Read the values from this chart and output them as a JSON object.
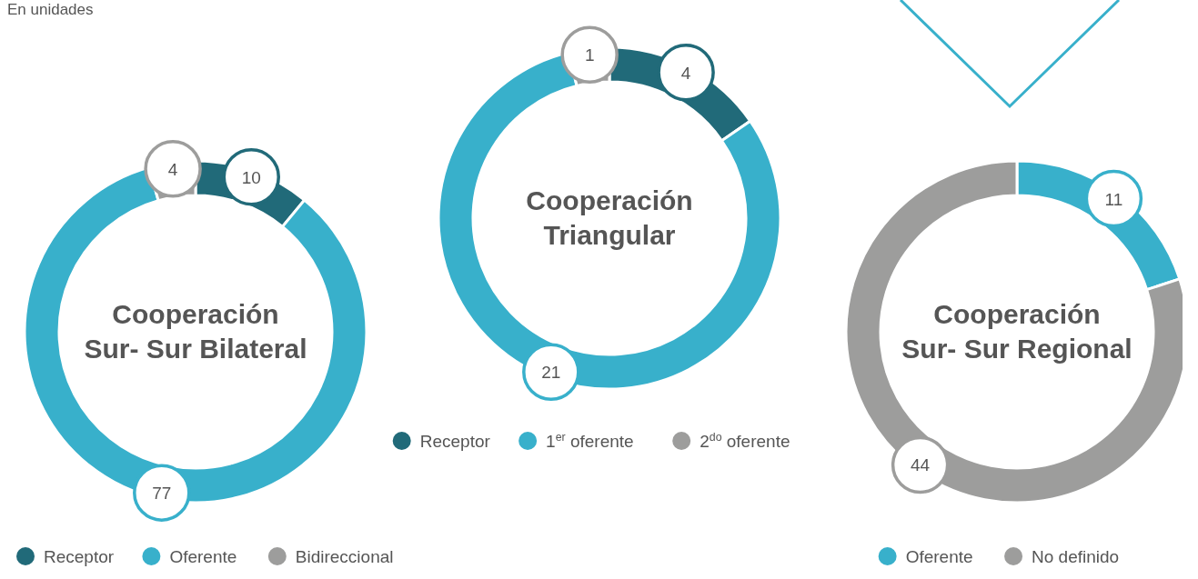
{
  "chart_data": [
    {
      "type": "donut",
      "title": "Cooperación Sur- Sur Bilateral",
      "subtitle": "En unidades",
      "categories": [
        "Receptor",
        "Oferente",
        "Bidireccional"
      ],
      "values": [
        10,
        77,
        4
      ],
      "colors": [
        "#216a79",
        "#38b0cb",
        "#9d9d9c"
      ],
      "data_labels": true,
      "legend": "bottom"
    },
    {
      "type": "donut",
      "title": "Cooperación Triangular",
      "categories": [
        "Receptor",
        "1$^{er}$ oferente",
        "2$^{do}$ oferente"
      ],
      "values": [
        4,
        21,
        1
      ],
      "colors": [
        "#216a79",
        "#38b0cb",
        "#9d9d9c"
      ],
      "data_labels": true,
      "legend": "bottom"
    },
    {
      "type": "donut",
      "title": "Cooperación Sur- Sur Regional",
      "categories": [
        "Oferente",
        "No definido"
      ],
      "values": [
        11,
        44
      ],
      "colors": [
        "#38b0cb",
        "#9d9d9c"
      ],
      "data_labels": true,
      "legend": "bottom"
    }
  ]
}
